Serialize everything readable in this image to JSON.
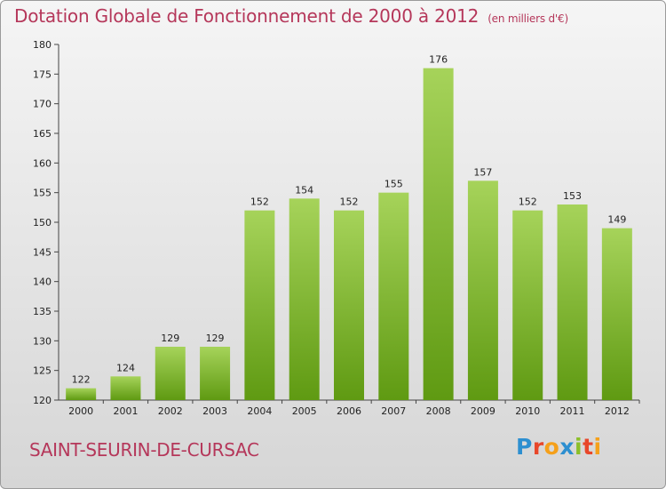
{
  "chart_data": {
    "type": "bar",
    "title": "Dotation Globale de Fonctionnement de 2000 à 2012",
    "unit": "(en milliers d'€)",
    "categories": [
      "2000",
      "2001",
      "2002",
      "2003",
      "2004",
      "2005",
      "2006",
      "2007",
      "2008",
      "2009",
      "2010",
      "2011",
      "2012"
    ],
    "values": [
      122,
      124,
      129,
      129,
      152,
      154,
      152,
      155,
      176,
      157,
      152,
      153,
      149
    ],
    "ylim": [
      120,
      180
    ],
    "yticks": [
      120,
      125,
      130,
      135,
      140,
      145,
      150,
      155,
      160,
      165,
      170,
      175,
      180
    ],
    "xlabel": "",
    "ylabel": "",
    "grid": false,
    "bar_color_top": "#a6d35a",
    "bar_color_bottom": "#5f9a12"
  },
  "footer": {
    "commune": "SAINT-SEURIN-DE-CURSAC",
    "logo_letters": [
      {
        "ch": "P",
        "color": "#2d8fd0"
      },
      {
        "ch": "r",
        "color": "#e8472a"
      },
      {
        "ch": "o",
        "color": "#f5a01a"
      },
      {
        "ch": "x",
        "color": "#2d8fd0"
      },
      {
        "ch": "i",
        "color": "#8cbf2a"
      },
      {
        "ch": "t",
        "color": "#e8472a"
      },
      {
        "ch": "i",
        "color": "#f5a01a"
      }
    ]
  }
}
